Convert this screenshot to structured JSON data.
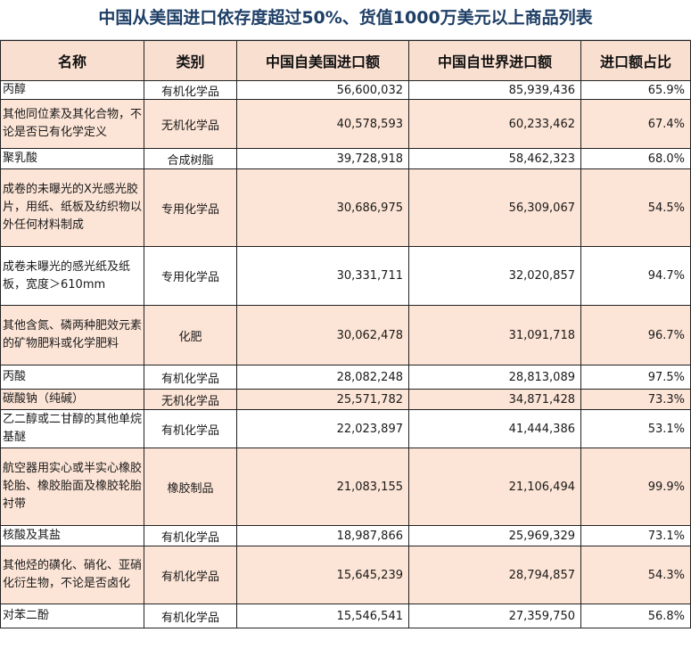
{
  "title": "中国从美国进口依存度超过50%、货值1000万美元以上商品列表",
  "headers": [
    "名称",
    "类别",
    "中国自美国进口额",
    "中国自世界进口额",
    "进口额占比"
  ],
  "rows": [
    {
      "name": "丙醇",
      "category": "有机化学品",
      "us_import": "56,600,032",
      "world_import": "85,939,436",
      "share": "65.9%"
    },
    {
      "name": "其他同位素及其化合物，不论是否已有化学定义",
      "category": "无机化学品",
      "us_import": "40,578,593",
      "world_import": "60,233,462",
      "share": "67.4%"
    },
    {
      "name": "聚乳酸",
      "category": "合成树脂",
      "us_import": "39,728,918",
      "world_import": "58,462,323",
      "share": "68.0%"
    },
    {
      "name": "成卷的未曝光的X光感光胶片，用纸、纸板及纺织物以外任何材料制成",
      "category": "专用化学品",
      "us_import": "30,686,975",
      "world_import": "56,309,067",
      "share": "54.5%"
    },
    {
      "name": "成卷未曝光的感光纸及纸板，宽度＞610mm",
      "category": "专用化学品",
      "us_import": "30,331,711",
      "world_import": "32,020,857",
      "share": "94.7%"
    },
    {
      "name": "其他含氮、磷两种肥效元素的矿物肥料或化学肥料",
      "category": "化肥",
      "us_import": "30,062,478",
      "world_import": "31,091,718",
      "share": "96.7%"
    },
    {
      "name": "丙酸",
      "category": "有机化学品",
      "us_import": "28,082,248",
      "world_import": "28,813,089",
      "share": "97.5%"
    },
    {
      "name": "碳酸钠（纯碱）",
      "category": "无机化学品",
      "us_import": "25,571,782",
      "world_import": "34,871,428",
      "share": "73.3%"
    },
    {
      "name": "乙二醇或二甘醇的其他单烷基醚",
      "category": "有机化学品",
      "us_import": "22,023,897",
      "world_import": "41,444,386",
      "share": "53.1%"
    },
    {
      "name": "航空器用实心或半实心橡胶轮胎、橡胶胎面及橡胶轮胎衬带",
      "category": "橡胶制品",
      "us_import": "21,083,155",
      "world_import": "21,106,494",
      "share": "99.9%"
    },
    {
      "name": "核酸及其盐",
      "category": "有机化学品",
      "us_import": "18,987,866",
      "world_import": "25,969,329",
      "share": "73.1%"
    },
    {
      "name": "其他烃的磺化、硝化、亚硝化衍生物，不论是否卤化",
      "category": "有机化学品",
      "us_import": "15,645,239",
      "world_import": "28,794,857",
      "share": "54.3%"
    },
    {
      "name": "对苯二酚",
      "category": "有机化学品",
      "us_import": "15,546,541",
      "world_import": "27,359,750",
      "share": "56.8%"
    }
  ]
}
